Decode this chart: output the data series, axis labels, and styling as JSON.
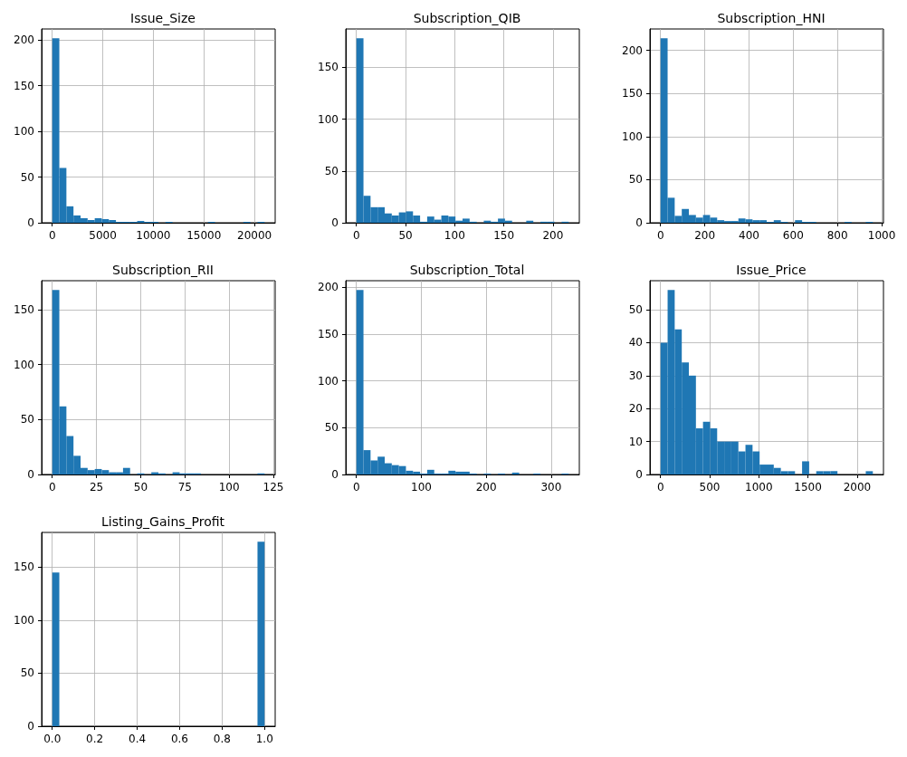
{
  "chart_data": [
    {
      "type": "histogram",
      "title": "Issue_Size",
      "color": "#1f77b4",
      "grid": true,
      "bins": [
        0,
        700,
        1400,
        2100,
        2800,
        3500,
        4200,
        4900,
        5600,
        6300,
        7000,
        7700,
        8400,
        9100,
        9800,
        10500,
        11200,
        11900,
        12600,
        13300,
        14000,
        14700,
        15400,
        16100,
        16800,
        17500,
        18200,
        18900,
        19600,
        20300,
        21000
      ],
      "values": [
        202,
        60,
        18,
        8,
        5,
        3,
        5,
        4,
        3,
        1,
        1,
        1,
        2,
        1,
        1,
        0,
        1,
        0,
        0,
        0,
        0,
        0,
        1,
        0,
        0,
        0,
        0,
        1,
        0,
        1
      ],
      "xlim": [
        -1050,
        22050
      ],
      "xticks": [
        0,
        5000,
        10000,
        15000,
        20000
      ],
      "ylim": [
        0,
        212.1
      ],
      "yticks": [
        0,
        50,
        100,
        150,
        200
      ]
    },
    {
      "type": "histogram",
      "title": "Subscription_QIB",
      "color": "#1f77b4",
      "grid": true,
      "bins": [
        0,
        7.2,
        14.4,
        21.6,
        28.8,
        36,
        43.2,
        50.4,
        57.6,
        64.8,
        72,
        79.2,
        86.4,
        93.6,
        100.8,
        108,
        115.2,
        122.4,
        129.6,
        136.8,
        144,
        151.2,
        158.4,
        165.6,
        172.8,
        180,
        187.2,
        194.4,
        201.6,
        208.8,
        216
      ],
      "values": [
        178,
        26,
        15,
        15,
        9,
        7,
        10,
        11,
        7,
        1,
        6,
        3,
        7,
        6,
        2,
        4,
        1,
        0,
        2,
        1,
        4,
        2,
        0,
        0,
        2,
        0,
        1,
        1,
        0,
        1
      ],
      "xlim": [
        -10.8,
        226.8
      ],
      "xticks": [
        0,
        50,
        100,
        150,
        200
      ],
      "ylim": [
        0,
        186.9
      ],
      "yticks": [
        0,
        50,
        100,
        150
      ]
    },
    {
      "type": "histogram",
      "title": "Subscription_HNI",
      "color": "#1f77b4",
      "grid": true,
      "bins": [
        0,
        32,
        64,
        96,
        128,
        160,
        192,
        224,
        256,
        288,
        320,
        352,
        384,
        416,
        448,
        480,
        512,
        544,
        576,
        608,
        640,
        672,
        704,
        736,
        768,
        800,
        832,
        864,
        896,
        928,
        960
      ],
      "values": [
        214,
        29,
        8,
        16,
        9,
        6,
        9,
        6,
        3,
        2,
        2,
        5,
        4,
        3,
        3,
        1,
        3,
        1,
        0,
        3,
        1,
        1,
        0,
        0,
        0,
        0,
        1,
        0,
        0,
        1
      ],
      "xlim": [
        -48,
        1008
      ],
      "xticks": [
        0,
        200,
        400,
        600,
        800,
        1000
      ],
      "ylim": [
        0,
        224.7
      ],
      "yticks": [
        0,
        50,
        100,
        150,
        200
      ]
    },
    {
      "type": "histogram",
      "title": "Subscription_RII",
      "color": "#1f77b4",
      "grid": true,
      "bins": [
        0,
        4,
        8,
        12,
        16,
        20,
        24,
        28,
        32,
        36,
        40,
        44,
        48,
        52,
        56,
        60,
        64,
        68,
        72,
        76,
        80,
        84,
        88,
        92,
        96,
        100,
        104,
        108,
        112,
        116,
        120
      ],
      "values": [
        168,
        62,
        35,
        17,
        6,
        4,
        5,
        4,
        2,
        2,
        6,
        0,
        1,
        0,
        2,
        1,
        0,
        2,
        1,
        1,
        1,
        0,
        0,
        0,
        0,
        0,
        0,
        0,
        0,
        1
      ],
      "xlim": [
        -6,
        126
      ],
      "xticks": [
        0,
        25,
        50,
        75,
        100,
        125
      ],
      "ylim": [
        0,
        176.4
      ],
      "yticks": [
        0,
        50,
        100,
        150
      ]
    },
    {
      "type": "histogram",
      "title": "Subscription_Total",
      "color": "#1f77b4",
      "grid": true,
      "bins": [
        0,
        10.9,
        21.8,
        32.7,
        43.6,
        54.5,
        65.4,
        76.3,
        87.2,
        98.1,
        109,
        119.9,
        130.8,
        141.7,
        152.6,
        163.5,
        174.4,
        185.3,
        196.2,
        207.1,
        218,
        228.9,
        239.8,
        250.7,
        261.6,
        272.5,
        283.4,
        294.3,
        305.2,
        316.1,
        327
      ],
      "values": [
        197,
        26,
        15,
        19,
        12,
        10,
        9,
        4,
        3,
        1,
        5,
        1,
        1,
        4,
        3,
        3,
        1,
        0,
        1,
        0,
        1,
        0,
        2,
        0,
        0,
        1,
        0,
        0,
        0,
        1
      ],
      "xlim": [
        -16.35,
        343.35
      ],
      "xticks": [
        0,
        100,
        200,
        300
      ],
      "ylim": [
        0,
        206.85
      ],
      "yticks": [
        0,
        50,
        100,
        150,
        200
      ]
    },
    {
      "type": "histogram",
      "title": "Issue_Price",
      "color": "#1f77b4",
      "grid": true,
      "bins": [
        0,
        72,
        144,
        216,
        288,
        360,
        432,
        504,
        576,
        648,
        720,
        792,
        864,
        936,
        1008,
        1080,
        1152,
        1224,
        1296,
        1368,
        1440,
        1512,
        1584,
        1656,
        1728,
        1800,
        1872,
        1944,
        2016,
        2088,
        2160
      ],
      "values": [
        40,
        56,
        44,
        34,
        30,
        14,
        16,
        14,
        10,
        10,
        10,
        7,
        9,
        7,
        3,
        3,
        2,
        1,
        1,
        0,
        4,
        0,
        1,
        1,
        1,
        0,
        0,
        0,
        0,
        1
      ],
      "xlim": [
        -108,
        2268
      ],
      "xticks": [
        0,
        500,
        1000,
        1500,
        2000
      ],
      "ylim": [
        0,
        58.8
      ],
      "yticks": [
        0,
        10,
        20,
        30,
        40,
        50
      ]
    },
    {
      "type": "histogram",
      "title": "Listing_Gains_Profit",
      "color": "#1f77b4",
      "grid": true,
      "bins": [
        0,
        0.0333,
        0.0667,
        0.1,
        0.1333,
        0.1667,
        0.2,
        0.2333,
        0.2667,
        0.3,
        0.3333,
        0.3667,
        0.4,
        0.4333,
        0.4667,
        0.5,
        0.5333,
        0.5667,
        0.6,
        0.6333,
        0.6667,
        0.7,
        0.7333,
        0.7667,
        0.8,
        0.8333,
        0.8667,
        0.9,
        0.9333,
        0.9667,
        1
      ],
      "values": [
        145,
        0,
        0,
        0,
        0,
        0,
        0,
        0,
        0,
        0,
        0,
        0,
        0,
        0,
        0,
        0,
        0,
        0,
        0,
        0,
        0,
        0,
        0,
        0,
        0,
        0,
        0,
        0,
        0,
        174
      ],
      "xlim": [
        -0.05,
        1.05
      ],
      "xticks": [
        {
          "value": 0,
          "label": "0.0"
        },
        {
          "value": 0.2,
          "label": "0.2"
        },
        {
          "value": 0.4,
          "label": "0.4"
        },
        {
          "value": 0.6,
          "label": "0.6"
        },
        {
          "value": 0.8,
          "label": "0.8"
        },
        {
          "value": 1,
          "label": "1.0"
        }
      ],
      "ylim": [
        0,
        182.7
      ],
      "yticks": [
        0,
        50,
        100,
        150
      ]
    }
  ]
}
